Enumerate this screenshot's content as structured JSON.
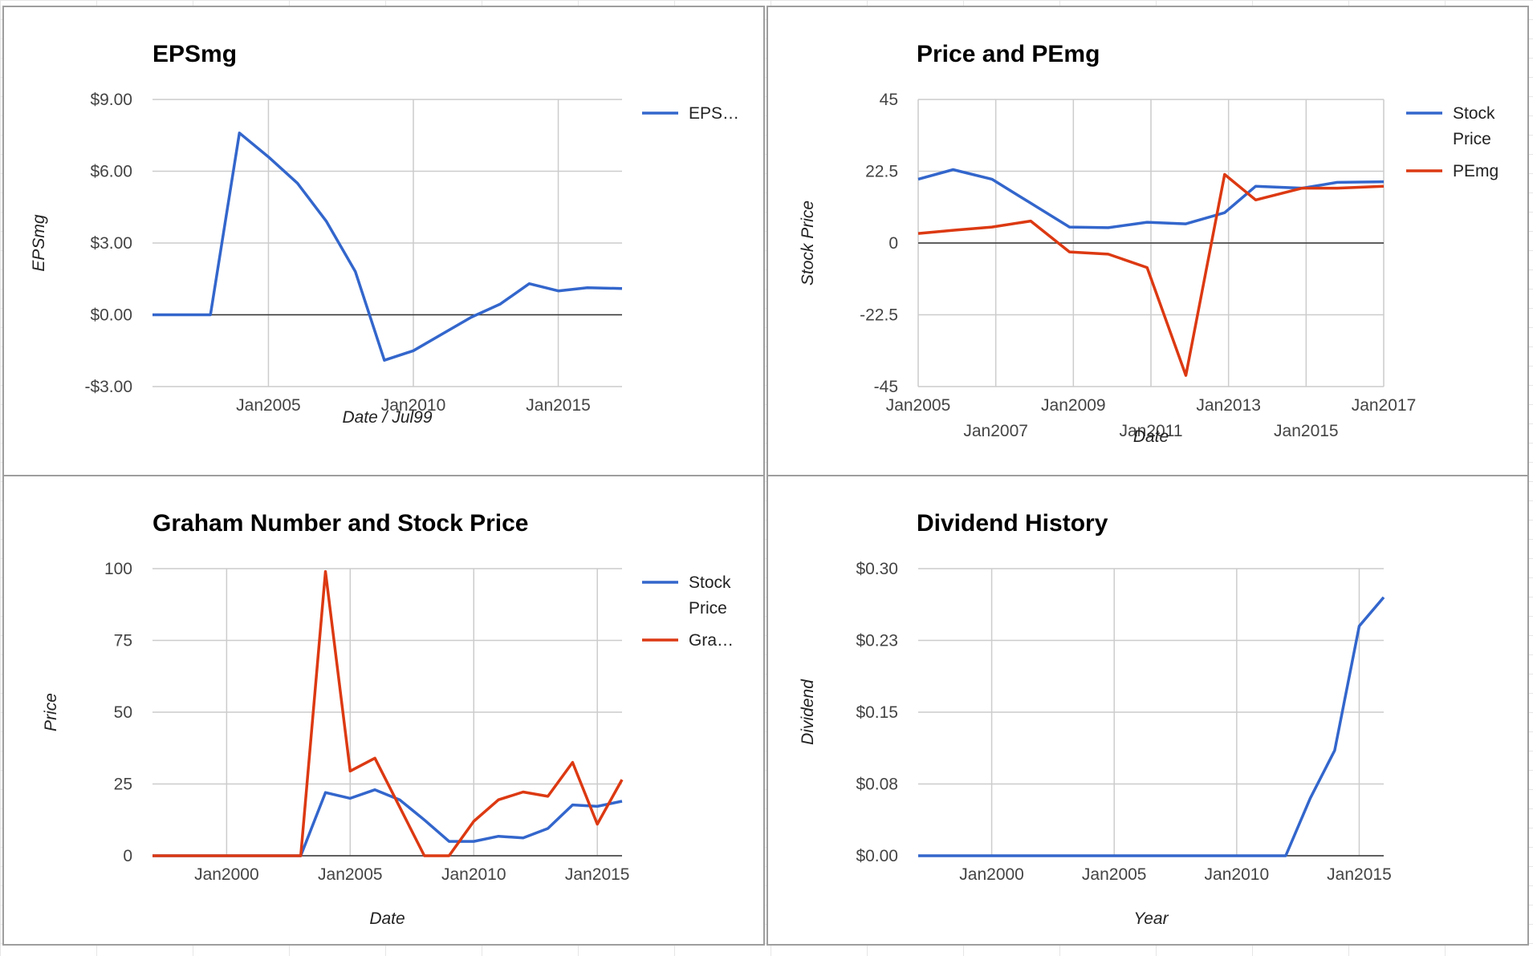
{
  "chart_data": [
    {
      "type": "line",
      "title": "EPSmg",
      "xlabel": "Date / Jul99",
      "ylabel": "EPSmg",
      "xlim": [
        2001,
        2017.2
      ],
      "ylim": [
        -3,
        9
      ],
      "y_ticks": [
        {
          "v": 9,
          "label": "$9.00"
        },
        {
          "v": 6,
          "label": "$6.00"
        },
        {
          "v": 3,
          "label": "$3.00"
        },
        {
          "v": 0,
          "label": "$0.00"
        },
        {
          "v": -3,
          "label": "-$3.00"
        }
      ],
      "x_ticks": [
        {
          "v": 2005,
          "label": "Jan2005"
        },
        {
          "v": 2010,
          "label": "Jan2010"
        },
        {
          "v": 2015,
          "label": "Jan2015"
        }
      ],
      "grid": true,
      "legend_position": "right",
      "series": [
        {
          "name": "EPS…",
          "color": "#3366cc",
          "points": [
            [
              2001,
              0
            ],
            [
              2003,
              0
            ],
            [
              2004,
              7.6
            ],
            [
              2005,
              6.6
            ],
            [
              2006,
              5.5
            ],
            [
              2007,
              3.9
            ],
            [
              2008,
              1.8
            ],
            [
              2009,
              -1.9
            ],
            [
              2010,
              -1.5
            ],
            [
              2011,
              -0.8
            ],
            [
              2012,
              -0.1
            ],
            [
              2013,
              0.45
            ],
            [
              2014,
              1.3
            ],
            [
              2015,
              1.0
            ],
            [
              2016,
              1.13
            ],
            [
              2017.2,
              1.1
            ]
          ]
        }
      ]
    },
    {
      "type": "line",
      "title": "Price and PEmg",
      "xlabel": "Date",
      "ylabel": "Stock Price",
      "xlim": [
        2005,
        2017
      ],
      "ylim": [
        -45,
        45
      ],
      "y_ticks": [
        {
          "v": 45,
          "label": "45"
        },
        {
          "v": 22.5,
          "label": "22.5"
        },
        {
          "v": 0,
          "label": "0"
        },
        {
          "v": -22.5,
          "label": "-22.5"
        },
        {
          "v": -45,
          "label": "-45"
        }
      ],
      "x_ticks": [
        {
          "v": 2005,
          "label": "Jan2005",
          "row": 0
        },
        {
          "v": 2007,
          "label": "Jan2007",
          "row": 1
        },
        {
          "v": 2009,
          "label": "Jan2009",
          "row": 0
        },
        {
          "v": 2011,
          "label": "Jan2011",
          "row": 1
        },
        {
          "v": 2013,
          "label": "Jan2013",
          "row": 0
        },
        {
          "v": 2015,
          "label": "Jan2015",
          "row": 1
        },
        {
          "v": 2017,
          "label": "Jan2017",
          "row": 0
        }
      ],
      "grid": true,
      "legend_position": "right",
      "series": [
        {
          "name": "Stock Price",
          "name_lines": [
            "Stock",
            "Price"
          ],
          "color": "#3366cc",
          "points": [
            [
              2005,
              20
            ],
            [
              2005.9,
              23
            ],
            [
              2006.9,
              20
            ],
            [
              2007.9,
              12.5
            ],
            [
              2008.9,
              5
            ],
            [
              2009.9,
              4.8
            ],
            [
              2010.9,
              6.5
            ],
            [
              2011.9,
              6
            ],
            [
              2012.9,
              9.5
            ],
            [
              2013.7,
              17.8
            ],
            [
              2014.9,
              17.2
            ],
            [
              2015.8,
              19
            ],
            [
              2017,
              19.2
            ]
          ]
        },
        {
          "name": "PEmg",
          "name_lines": [
            "PEmg"
          ],
          "color": "#dc3912",
          "points": [
            [
              2005,
              3
            ],
            [
              2005.9,
              4
            ],
            [
              2006.9,
              5
            ],
            [
              2007.9,
              6.9
            ],
            [
              2008.9,
              -2.8
            ],
            [
              2009.9,
              -3.5
            ],
            [
              2010.9,
              -7.7
            ],
            [
              2011.9,
              -41.5
            ],
            [
              2012.9,
              21.5
            ],
            [
              2013.7,
              13.5
            ],
            [
              2014.9,
              17.2
            ],
            [
              2015.8,
              17.2
            ],
            [
              2017,
              17.8
            ]
          ]
        }
      ]
    },
    {
      "type": "line",
      "title": "Graham Number and Stock Price",
      "xlabel": "Date",
      "ylabel": "Price",
      "xlim": [
        1997,
        2016
      ],
      "ylim": [
        0,
        100
      ],
      "y_ticks": [
        {
          "v": 100,
          "label": "100"
        },
        {
          "v": 75,
          "label": "75"
        },
        {
          "v": 50,
          "label": "50"
        },
        {
          "v": 25,
          "label": "25"
        },
        {
          "v": 0,
          "label": "0"
        }
      ],
      "x_ticks": [
        {
          "v": 2000,
          "label": "Jan2000"
        },
        {
          "v": 2005,
          "label": "Jan2005"
        },
        {
          "v": 2010,
          "label": "Jan2010"
        },
        {
          "v": 2015,
          "label": "Jan2015"
        }
      ],
      "grid": true,
      "legend_position": "right",
      "series": [
        {
          "name": "Stock Price",
          "name_lines": [
            "Stock",
            "Price"
          ],
          "color": "#3366cc",
          "points": [
            [
              1997,
              0
            ],
            [
              2003,
              0
            ],
            [
              2004,
              22
            ],
            [
              2005,
              20
            ],
            [
              2006,
              23
            ],
            [
              2007,
              19.5
            ],
            [
              2008,
              12.5
            ],
            [
              2009,
              5
            ],
            [
              2010,
              5
            ],
            [
              2011,
              6.8
            ],
            [
              2012,
              6.2
            ],
            [
              2013,
              9.5
            ],
            [
              2014,
              17.7
            ],
            [
              2015,
              17.2
            ],
            [
              2016,
              19
            ]
          ]
        },
        {
          "name": "Gra…",
          "name_lines": [
            "Gra…"
          ],
          "color": "#dc3912",
          "points": [
            [
              1997,
              0
            ],
            [
              2003,
              0
            ],
            [
              2004,
              99
            ],
            [
              2005,
              29.5
            ],
            [
              2006,
              34
            ],
            [
              2007,
              17
            ],
            [
              2008,
              0
            ],
            [
              2009,
              0
            ],
            [
              2010,
              12
            ],
            [
              2011,
              19.5
            ],
            [
              2012,
              22.2
            ],
            [
              2013,
              20.7
            ],
            [
              2014,
              32.5
            ],
            [
              2015,
              11
            ],
            [
              2016,
              26.5
            ]
          ]
        }
      ]
    },
    {
      "type": "line",
      "title": "Dividend History",
      "xlabel": "Year",
      "ylabel": "Dividend",
      "xlim": [
        1997,
        2016
      ],
      "ylim": [
        0,
        0.3
      ],
      "y_ticks": [
        {
          "v": 0.3,
          "label": "$0.30"
        },
        {
          "v": 0.225,
          "label": "$0.23"
        },
        {
          "v": 0.15,
          "label": "$0.15"
        },
        {
          "v": 0.075,
          "label": "$0.08"
        },
        {
          "v": 0,
          "label": "$0.00"
        }
      ],
      "x_ticks": [
        {
          "v": 2000,
          "label": "Jan2000"
        },
        {
          "v": 2005,
          "label": "Jan2005"
        },
        {
          "v": 2010,
          "label": "Jan2010"
        },
        {
          "v": 2015,
          "label": "Jan2015"
        }
      ],
      "grid": true,
      "legend_position": "none",
      "series": [
        {
          "name": "",
          "color": "#3366cc",
          "points": [
            [
              1997,
              0
            ],
            [
              2012,
              0
            ],
            [
              2013,
              0.06
            ],
            [
              2014,
              0.11
            ],
            [
              2015,
              0.24
            ],
            [
              2016,
              0.27
            ]
          ]
        }
      ]
    }
  ]
}
